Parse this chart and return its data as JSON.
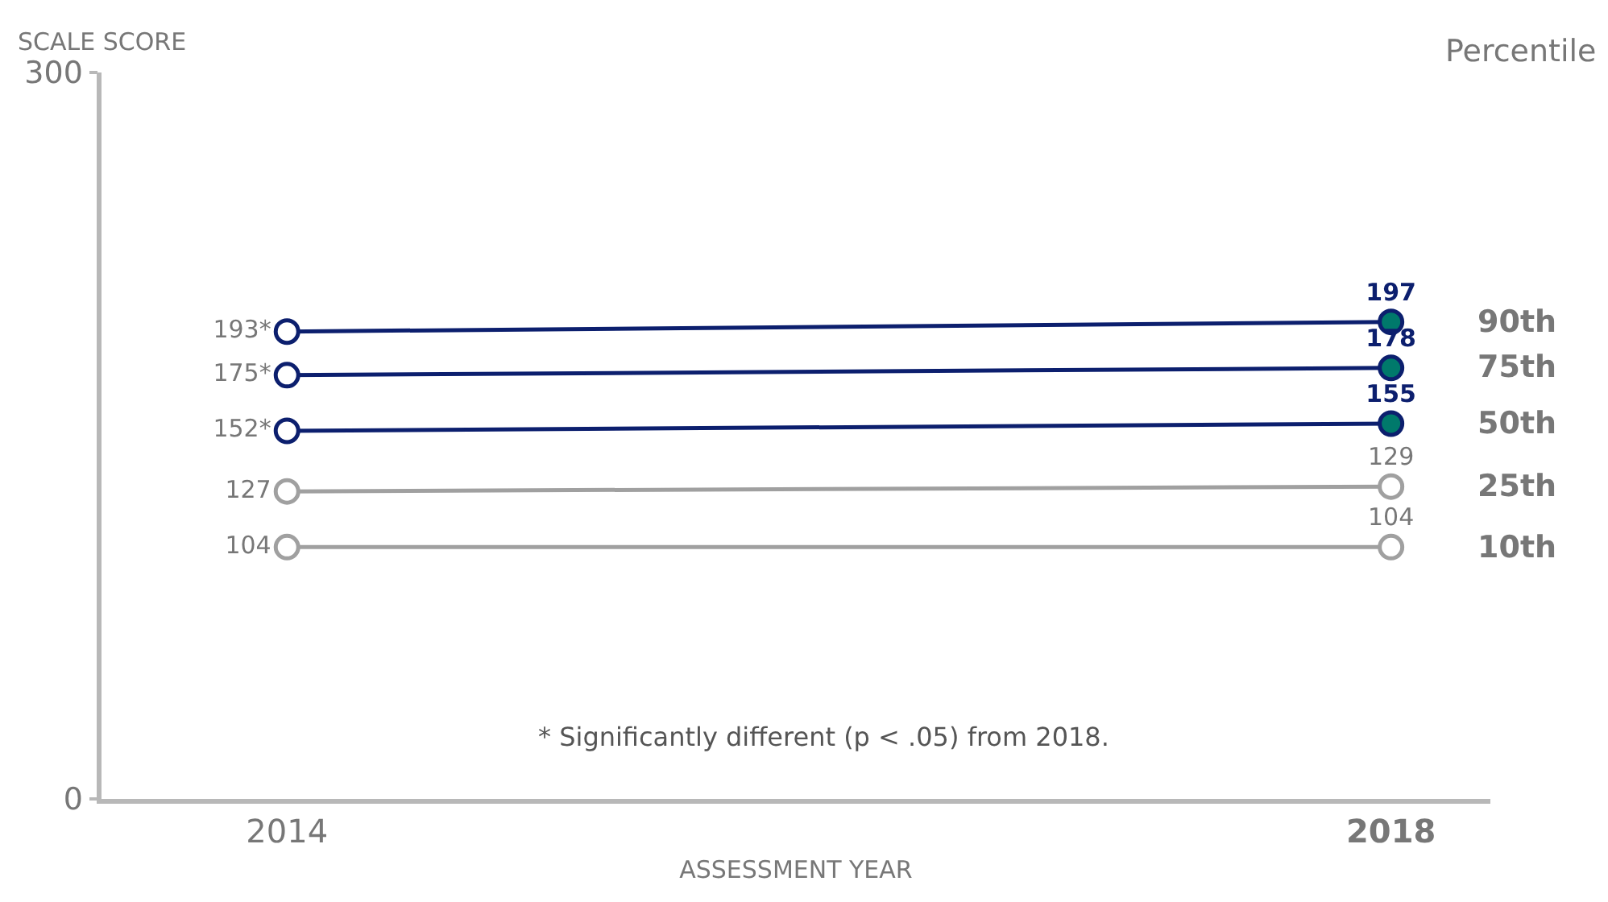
{
  "chart_data": {
    "type": "line",
    "ylabel": "SCALE SCORE",
    "xlabel": "ASSESSMENT YEAR",
    "legend_title": "Percentile",
    "categories": [
      "2014",
      "2018"
    ],
    "ylim": [
      0,
      300
    ],
    "yticks": [
      0,
      300
    ],
    "legend": false,
    "marker": "circle",
    "series": [
      {
        "name": "90th",
        "color": "#0c1f6e",
        "colors": [
          "#ffffff",
          "#00796b"
        ],
        "values": [
          193,
          197
        ],
        "value_labels": [
          "193*",
          "197"
        ]
      },
      {
        "name": "75th",
        "color": "#0c1f6e",
        "colors": [
          "#ffffff",
          "#00796b"
        ],
        "values": [
          175,
          178
        ],
        "value_labels": [
          "175*",
          "178"
        ]
      },
      {
        "name": "50th",
        "color": "#0c1f6e",
        "colors": [
          "#ffffff",
          "#00796b"
        ],
        "values": [
          152,
          155
        ],
        "value_labels": [
          "152*",
          "155"
        ]
      },
      {
        "name": "25th",
        "color": "#a0a0a0",
        "colors": [
          "#ffffff",
          "#ffffff"
        ],
        "values": [
          127,
          129
        ],
        "value_labels": [
          "127",
          "129"
        ]
      },
      {
        "name": "10th",
        "color": "#a0a0a0",
        "colors": [
          "#ffffff",
          "#ffffff"
        ],
        "values": [
          104,
          104
        ],
        "value_labels": [
          "104",
          "104"
        ]
      }
    ],
    "annotations": [
      "* Significantly different (p < .05) from 2018."
    ]
  }
}
